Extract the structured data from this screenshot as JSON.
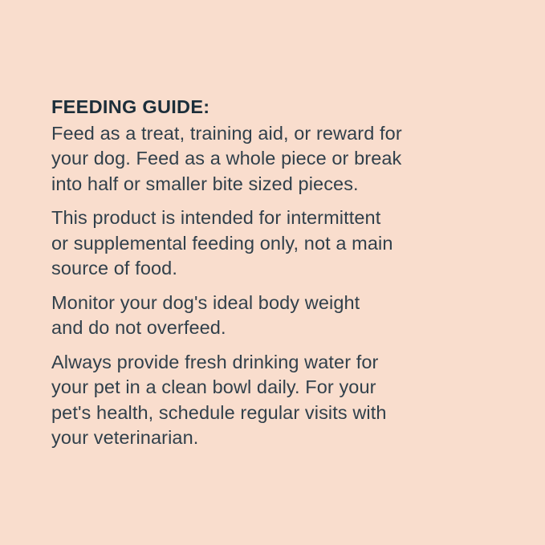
{
  "page": {
    "background_color": "#f9ddcd",
    "heading_color": "#1c2e3a",
    "body_color": "#31404b"
  },
  "content": {
    "heading": "FEEDING GUIDE:",
    "paragraphs": [
      {
        "lines": [
          "Feed as a treat, training aid, or reward for",
          "your dog. Feed as a whole piece or break",
          "into half or smaller bite sized pieces."
        ]
      },
      {
        "lines": [
          "This product is intended for intermittent",
          "or supplemental feeding only, not a main",
          "source of food."
        ]
      },
      {
        "lines": [
          "Monitor your dog's ideal body weight",
          "and do not overfeed."
        ]
      },
      {
        "lines": [
          "Always provide fresh drinking water for",
          "your pet in a clean bowl daily. For your",
          "pet's health, schedule regular visits with",
          "your veterinarian."
        ]
      }
    ]
  }
}
